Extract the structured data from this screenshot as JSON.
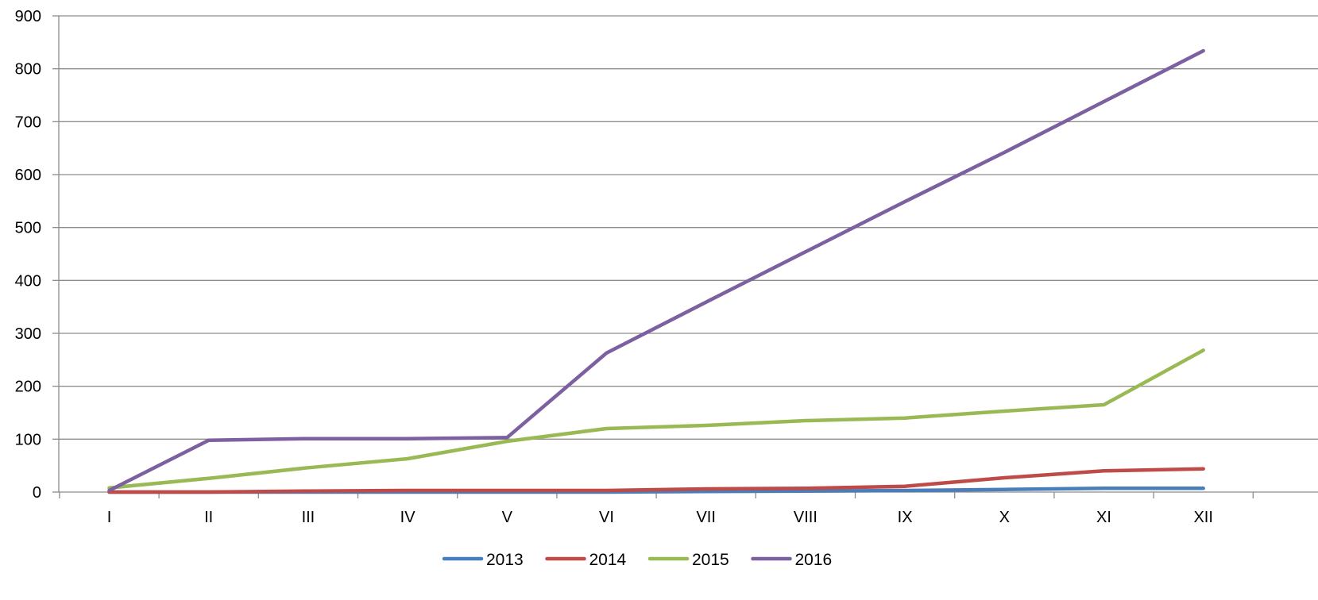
{
  "chart_data": {
    "type": "line",
    "categories": [
      "I",
      "II",
      "III",
      "IV",
      "V",
      "VI",
      "VII",
      "VIII",
      "IX",
      "X",
      "XI",
      "XII"
    ],
    "ylim": [
      0,
      900
    ],
    "yticks": [
      0,
      100,
      200,
      300,
      400,
      500,
      600,
      700,
      800,
      900
    ],
    "grid": true,
    "legend_position": "bottom",
    "series": [
      {
        "name": "2013",
        "color": "#4a7ebb",
        "values": [
          0,
          0,
          0,
          0,
          0,
          0,
          1,
          2,
          3,
          5,
          7,
          7
        ]
      },
      {
        "name": "2014",
        "color": "#be4b48",
        "values": [
          0,
          0,
          2,
          3,
          3,
          3,
          6,
          7,
          11,
          27,
          40,
          44
        ]
      },
      {
        "name": "2015",
        "color": "#98b954",
        "values": [
          8,
          26,
          46,
          63,
          96,
          120,
          126,
          135,
          140,
          153,
          165,
          268
        ]
      },
      {
        "name": "2016",
        "color": "#7d60a0",
        "values": [
          3,
          98,
          101,
          101,
          103,
          263,
          359,
          454,
          549,
          642,
          738,
          834
        ]
      }
    ]
  }
}
